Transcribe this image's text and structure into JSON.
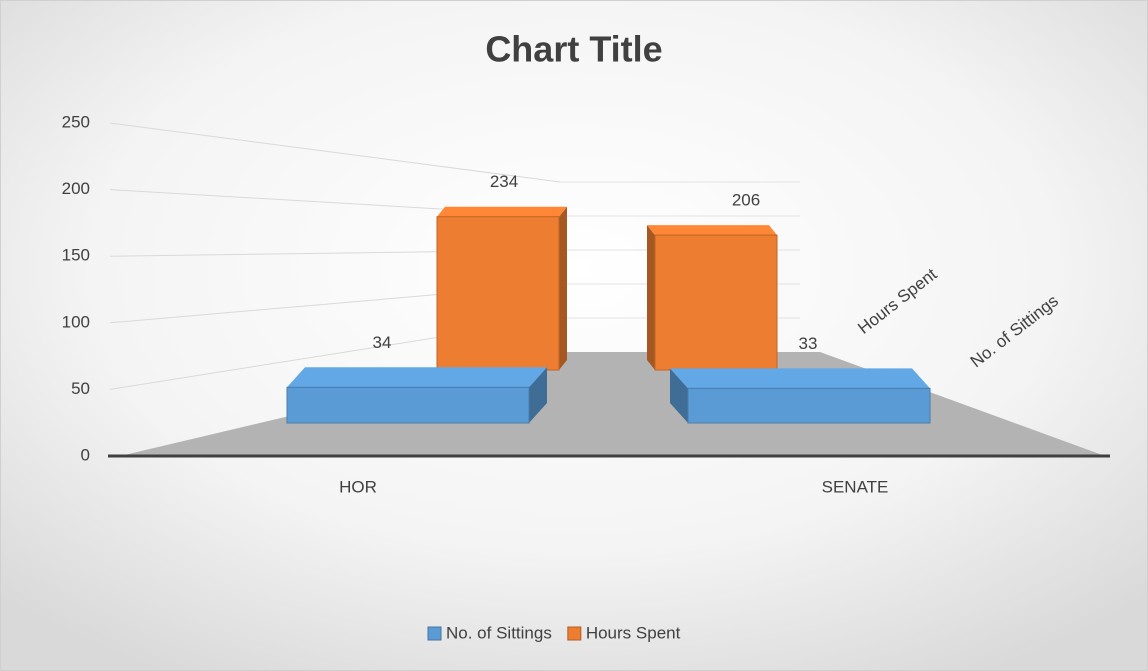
{
  "chart_data": {
    "type": "bar3d",
    "title": "Chart Title",
    "categories": [
      "HOR",
      "SENATE"
    ],
    "series": [
      {
        "name": "No. of Sittings",
        "color": "#5b9bd5",
        "values": [
          34,
          33
        ]
      },
      {
        "name": "Hours Spent",
        "color": "#ed7d31",
        "values": [
          234,
          206
        ]
      }
    ],
    "ylim": [
      0,
      250
    ],
    "yticks": [
      0,
      50,
      100,
      150,
      200,
      250
    ],
    "grid": true,
    "legend": "bottom"
  }
}
